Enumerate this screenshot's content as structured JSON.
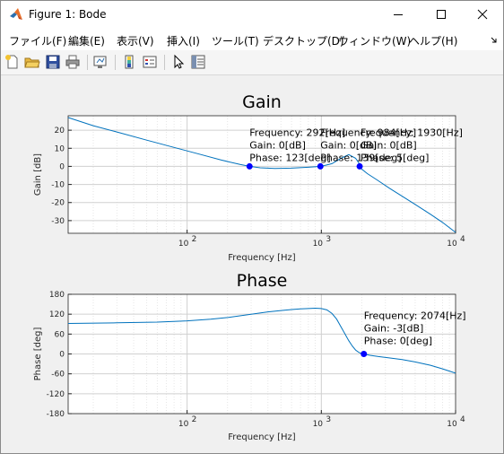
{
  "window": {
    "title": "Figure 1: Bode"
  },
  "menu": {
    "items": [
      "ファイル(F)",
      "編集(E)",
      "表示(V)",
      "挿入(I)",
      "ツール(T)",
      "デスクトップ(D)",
      "ウィンドウ(W)",
      "ヘルプ(H)"
    ]
  },
  "toolbar": {
    "icons": [
      "new-figure-icon",
      "open-file-icon",
      "save-icon",
      "print-icon",
      "link-plot-icon",
      "insert-colorbar-icon",
      "insert-legend-icon",
      "edit-plot-arrow-icon",
      "property-inspector-icon"
    ]
  },
  "colors": {
    "line": "#0072bd",
    "marker": "#0000ff",
    "grid": "#d9d9d9"
  },
  "chart_data": [
    {
      "type": "line",
      "title": "Gain",
      "xlabel": "Frequency [Hz]",
      "ylabel": "Gain [dB]",
      "xscale": "log",
      "xlim": [
        13,
        10000
      ],
      "ylim": [
        -37,
        28
      ],
      "xticks": [
        100,
        1000,
        10000
      ],
      "xtick_labels": [
        [
          "10",
          "2"
        ],
        [
          "10",
          "3"
        ],
        [
          "10",
          "4"
        ]
      ],
      "yticks": [
        20,
        10,
        0,
        -10,
        -20,
        -30
      ],
      "ytick_labels": [
        "20",
        "10",
        "0",
        "-10",
        "-20",
        "-30"
      ],
      "grid": true,
      "series": [
        {
          "x": [
            13,
            20,
            30,
            50,
            80,
            120,
            180,
            250,
            292,
            350,
            450,
            600,
            800,
            1000,
            1200,
            1400,
            1600,
            1800,
            1900,
            1930,
            2000,
            2200,
            2600,
            3200,
            4000,
            5000,
            6500,
            8000,
            10000
          ],
          "y": [
            27,
            22.5,
            19,
            14.5,
            10.5,
            7,
            3.5,
            1,
            0,
            -0.8,
            -1.2,
            -1,
            -0.5,
            0,
            1.5,
            4.5,
            6.5,
            4.5,
            2,
            0,
            -1.5,
            -4,
            -7.5,
            -12,
            -16.5,
            -21,
            -26.5,
            -31,
            -36.5
          ]
        }
      ],
      "datatips": [
        {
          "x": 292,
          "y": 0,
          "lines": [
            "Frequency: 292[Hz]",
            "Gain: 0[dB]",
            "Phase: 123[deg]"
          ]
        },
        {
          "x": 984,
          "y": 0,
          "lines": [
            "Frequency: 984[Hz]",
            "Gain: 0[dB]",
            "Phase: 139[deg]"
          ]
        },
        {
          "x": 1930,
          "y": 0,
          "lines": [
            "Frequency: 1930[Hz]",
            "Gain: 0[dB]",
            "Phase: 5[deg]"
          ]
        }
      ]
    },
    {
      "type": "line",
      "title": "Phase",
      "xlabel": "Frequency [Hz]",
      "ylabel": "Phase [deg]",
      "xscale": "log",
      "xlim": [
        13,
        10000
      ],
      "ylim": [
        -180,
        180
      ],
      "xticks": [
        100,
        1000,
        10000
      ],
      "xtick_labels": [
        [
          "10",
          "2"
        ],
        [
          "10",
          "3"
        ],
        [
          "10",
          "4"
        ]
      ],
      "yticks": [
        180,
        120,
        60,
        0,
        -60,
        -120,
        -180
      ],
      "ytick_labels": [
        "180",
        "120",
        "60",
        "0",
        "-60",
        "-120",
        "-180"
      ],
      "grid": true,
      "series": [
        {
          "x": [
            13,
            30,
            60,
            100,
            150,
            200,
            300,
            400,
            500,
            600,
            700,
            800,
            900,
            1000,
            1100,
            1200,
            1300,
            1400,
            1500,
            1600,
            1700,
            1800,
            1900,
            2000,
            2074,
            2300,
            2700,
            3200,
            4000,
            5000,
            6500,
            8000,
            10000
          ],
          "y": [
            92,
            94,
            96,
            100,
            105,
            110,
            120,
            127,
            131,
            134,
            136,
            137,
            138,
            137,
            133,
            122,
            105,
            82,
            60,
            40,
            24,
            12,
            5,
            1,
            0,
            -4,
            -8,
            -12,
            -17,
            -24,
            -34,
            -45,
            -58
          ]
        }
      ],
      "datatips": [
        {
          "x": 2074,
          "y": 0,
          "lines": [
            "Frequency: 2074[Hz]",
            "Gain: -3[dB]",
            "Phase: 0[deg]"
          ]
        }
      ]
    }
  ]
}
